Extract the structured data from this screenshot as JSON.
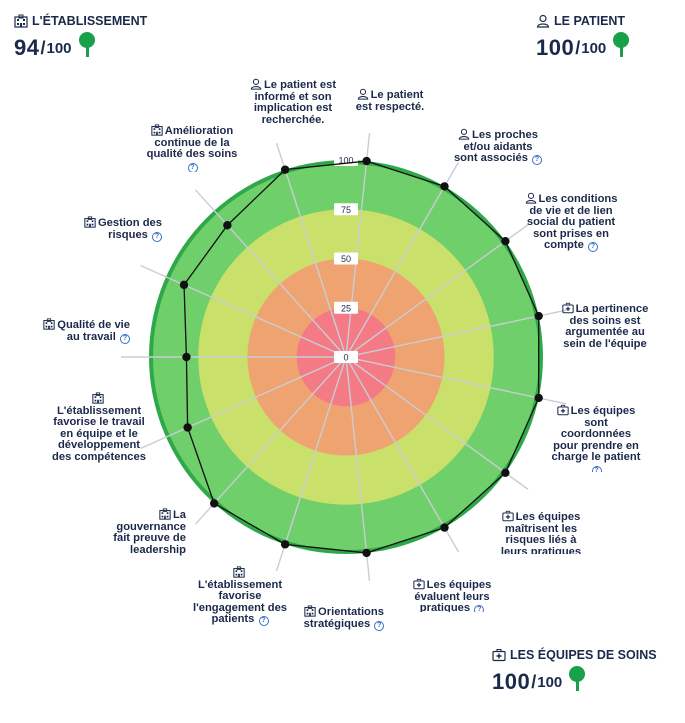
{
  "scores": {
    "etablissement": {
      "title": "L'ÉTABLISSEMENT",
      "value": "94",
      "max": "100"
    },
    "patient": {
      "title": "LE PATIENT",
      "value": "100",
      "max": "100"
    },
    "equipes": {
      "title": "LES ÉQUIPES DE SOINS",
      "value": "100",
      "max": "100"
    }
  },
  "icons": {
    "etablissement": "building-icon",
    "patient": "person-icon",
    "equipes": "medical-kit-icon",
    "help": "help-circle-icon",
    "tree": "tree-icon"
  },
  "colors": {
    "ring_0_25": "#f47a86",
    "ring_25_50": "#efa371",
    "ring_50_75": "#c9e06b",
    "ring_75_100": "#6fcf6a",
    "outer_ring": "#2fa84a",
    "text": "#1b2a4a"
  },
  "chart_data": {
    "type": "radar",
    "scale_ticks": [
      "0",
      "25",
      "50",
      "75",
      "100"
    ],
    "rlim": [
      0,
      100
    ],
    "criteria": [
      {
        "label": "Le patient est respecté.",
        "category": "patient",
        "value": 100,
        "help": false
      },
      {
        "label": "Les proches et/ou aidants sont associés",
        "category": "patient",
        "value": 100,
        "help": true
      },
      {
        "label": "Les conditions de vie et de lien social du patient sont prises en compte",
        "category": "patient",
        "value": 100,
        "help": true
      },
      {
        "label": "La pertinence des soins est argumentée au sein de l'équipe",
        "category": "equipes",
        "value": 100,
        "help": false
      },
      {
        "label": "Les équipes sont coordonnées pour prendre en charge le patient",
        "category": "equipes",
        "value": 100,
        "help": true
      },
      {
        "label": "Les équipes maîtrisent les risques liés à leurs pratiques",
        "category": "equipes",
        "value": 100,
        "help": false
      },
      {
        "label": "Les équipes évaluent leurs pratiques",
        "category": "equipes",
        "value": 100,
        "help": true
      },
      {
        "label": "Orientations stratégiques",
        "category": "etablissement",
        "value": 100,
        "help": true
      },
      {
        "label": "L'établissement favorise l'engagement des patients",
        "category": "etablissement",
        "value": 100,
        "help": true
      },
      {
        "label": "La gouvernance fait preuve de leadership",
        "category": "etablissement",
        "value": 100,
        "help": false
      },
      {
        "label": "L'établissement favorise le travail en équipe et le développement des compétences",
        "category": "etablissement",
        "value": 88,
        "help": false
      },
      {
        "label": "Qualité de vie au travail",
        "category": "etablissement",
        "value": 81,
        "help": true
      },
      {
        "label": "Gestion des risques",
        "category": "etablissement",
        "value": 90,
        "help": true
      },
      {
        "label": "Amélioration continue de la qualité des soins",
        "category": "etablissement",
        "value": 90,
        "help": true
      },
      {
        "label": "Le patient est informé et son implication est recherchée.",
        "category": "patient",
        "value": 100,
        "help": false
      }
    ]
  }
}
